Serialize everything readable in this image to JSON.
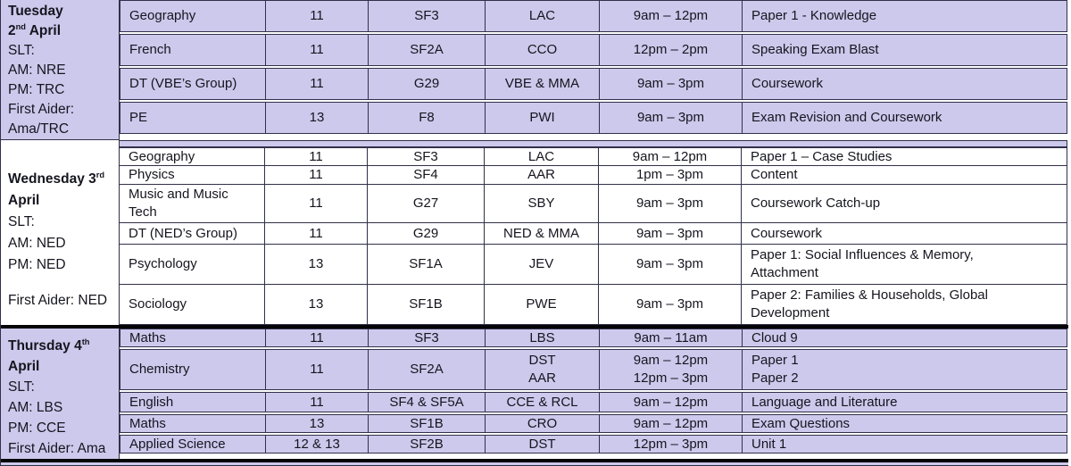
{
  "colors": {
    "row_lavender": "#cdc9ec",
    "row_white": "#ffffff",
    "grid_line": "#30304a",
    "block_divider": "#050508",
    "text": "#15151f"
  },
  "table": {
    "columns": [
      "subject",
      "year",
      "room",
      "staff",
      "time",
      "detail"
    ],
    "blocks": [
      {
        "id": "tuesday",
        "shade": "lavender",
        "day": {
          "title_lines": [
            {
              "pre": "Tuesday",
              "sup": "",
              "post": ""
            },
            {
              "pre": "2",
              "sup": "nd",
              "post": " April"
            }
          ],
          "info_lines": [
            "SLT:",
            "AM: NRE",
            "PM: TRC",
            "First Aider:",
            "Ama/TRC"
          ]
        },
        "rows": [
          {
            "subject": "Geography",
            "year": "11",
            "room": "SF3",
            "staff": "LAC",
            "time": "9am – 12pm",
            "detail": "Paper 1 - Knowledge"
          },
          {
            "subject": "French",
            "year": "11",
            "room": "SF2A",
            "staff": "CCO",
            "time": "12pm – 2pm",
            "detail": "Speaking Exam Blast"
          },
          {
            "subject": "DT (VBE’s Group)",
            "year": "11",
            "room": "G29",
            "staff": "VBE & MMA",
            "time": "9am – 3pm",
            "detail": "Coursework"
          },
          {
            "subject": "PE",
            "year": "13",
            "room": "F8",
            "staff": "PWI",
            "time": "9am – 3pm",
            "detail": "Exam Revision and Coursework"
          }
        ]
      },
      {
        "id": "wednesday",
        "shade": "white",
        "day": {
          "title_lines": [
            {
              "pre": "Wednesday 3",
              "sup": "rd",
              "post": ""
            },
            {
              "pre": "April",
              "sup": "",
              "post": ""
            }
          ],
          "info_lines": [
            "SLT:",
            "AM: NED",
            "PM: NED",
            "",
            "First Aider: NED"
          ]
        },
        "rows": [
          {
            "subject": "Geography",
            "year": "11",
            "room": "SF3",
            "staff": "LAC",
            "time": "9am – 12pm",
            "detail": "Paper 1 – Case Studies"
          },
          {
            "subject": "Physics",
            "year": "11",
            "room": "SF4",
            "staff": "AAR",
            "time": "1pm – 3pm",
            "detail": "Content"
          },
          {
            "subject": "Music and Music\nTech",
            "year": "11",
            "room": "G27",
            "staff": "SBY",
            "time": "9am – 3pm",
            "detail": "Coursework Catch-up"
          },
          {
            "subject": "DT (NED’s Group)",
            "year": "11",
            "room": "G29",
            "staff": "NED & MMA",
            "time": "9am – 3pm",
            "detail": "Coursework"
          },
          {
            "subject": "Psychology",
            "year": "13",
            "room": "SF1A",
            "staff": "JEV",
            "time": "9am – 3pm",
            "detail": "Paper 1: Social Influences & Memory,\nAttachment"
          },
          {
            "subject": "Sociology",
            "year": "13",
            "room": "SF1B",
            "staff": "PWE",
            "time": "9am – 3pm",
            "detail": "Paper 2: Families & Households, Global\nDevelopment"
          }
        ]
      },
      {
        "id": "thursday",
        "shade": "lavender",
        "day": {
          "title_lines": [
            {
              "pre": "Thursday 4",
              "sup": "th",
              "post": ""
            },
            {
              "pre": "April",
              "sup": "",
              "post": ""
            }
          ],
          "info_lines": [
            "SLT:",
            "AM: LBS",
            "PM: CCE",
            "First Aider: Ama"
          ]
        },
        "rows": [
          {
            "subject": "Maths",
            "year": "11",
            "room": "SF3",
            "staff": "LBS",
            "time": "9am – 11am",
            "detail": "Cloud 9"
          },
          {
            "subject": "Chemistry",
            "year": "11",
            "room": "SF2A",
            "staff": "DST\nAAR",
            "time": "9am – 12pm\n12pm – 3pm",
            "detail": "Paper 1\nPaper 2"
          },
          {
            "subject": "English",
            "year": "11",
            "room": "SF4 & SF5A",
            "staff": "CCE & RCL",
            "time": "9am – 12pm",
            "detail": "Language and Literature"
          },
          {
            "subject": "Maths",
            "year": "13",
            "room": "SF1B",
            "staff": "CRO",
            "time": "9am – 12pm",
            "detail": "Exam Questions"
          },
          {
            "subject": "Applied Science",
            "year": "12 & 13",
            "room": "SF2B",
            "staff": "DST",
            "time": "12pm – 3pm",
            "detail": "Unit 1"
          }
        ]
      }
    ]
  }
}
